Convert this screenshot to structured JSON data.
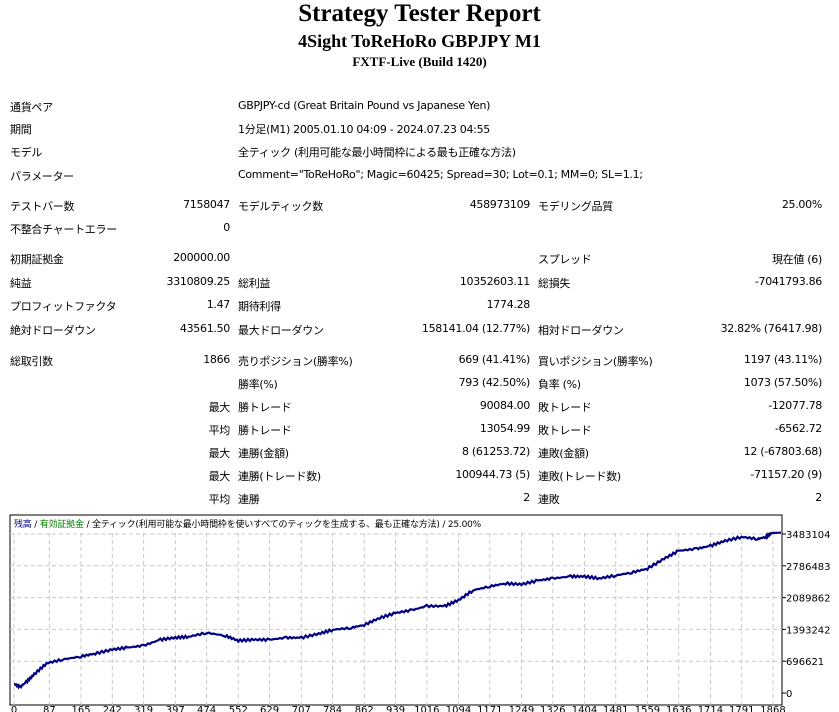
{
  "header": {
    "title": "Strategy Tester Report",
    "subtitle": "4Sight ToReHoRo GBPJPY M1",
    "build": "FXTF-Live (Build 1420)"
  },
  "info": [
    {
      "label": "通貨ペア",
      "value": "GBPJPY-cd (Great Britain Pound vs Japanese Yen)"
    },
    {
      "label": "期間",
      "value": "1分足(M1) 2005.01.10 04:09 - 2024.07.23 04:55"
    },
    {
      "label": "モデル",
      "value": "全ティック (利用可能な最小時間枠による最も正確な方法)"
    },
    {
      "label": "パラメーター",
      "value": "Comment=\"ToReHoRo\"; Magic=60425; Spread=30; Lot=0.1; MM=0; SL=1.1;"
    }
  ],
  "stats": [
    [
      "テストバー数",
      "7158047",
      "モデルティック数",
      "458973109",
      "モデリング品質",
      "25.00%"
    ],
    [
      "不整合チャートエラー",
      "0",
      "",
      "",
      "",
      ""
    ],
    [
      "初期証拠金",
      "200000.00",
      "",
      "",
      "スプレッド",
      "現在値 (6)"
    ],
    [
      "純益",
      "3310809.25",
      "総利益",
      "10352603.11",
      "総損失",
      "-7041793.86"
    ],
    [
      "プロフィットファクタ",
      "1.47",
      "期待利得",
      "1774.28",
      "",
      ""
    ],
    [
      "絶対ドローダウン",
      "43561.50",
      "最大ドローダウン",
      "158141.04 (12.77%)",
      "相対ドローダウン",
      "32.82% (76417.98)"
    ],
    [
      "総取引数",
      "1866",
      "売りポジション(勝率%)",
      "669 (41.41%)",
      "買いポジション(勝率%)",
      "1197 (43.11%)"
    ],
    [
      "",
      "",
      "勝率(%)",
      "793 (42.50%)",
      "負率 (%)",
      "1073 (57.50%)"
    ],
    [
      "",
      "最大",
      "勝トレード",
      "90084.00",
      "敗トレード",
      "-12077.78"
    ],
    [
      "",
      "平均",
      "勝トレード",
      "13054.99",
      "敗トレード",
      "-6562.72"
    ],
    [
      "",
      "最大",
      "連勝(金額)",
      "8 (61253.72)",
      "連敗(金額)",
      "12 (-67803.68)"
    ],
    [
      "",
      "最大",
      "連勝(トレード数)",
      "100944.73 (5)",
      "連敗(トレード数)",
      "-71157.20 (9)"
    ],
    [
      "",
      "平均",
      "連勝",
      "2",
      "連敗",
      "2"
    ]
  ],
  "legend": {
    "balance": "残高",
    "sep1": " / ",
    "equity": "有効証拠金",
    "sep2": " / ",
    "model": "全ティック(利用可能な最小時間枠を使いすべてのティックを生成する、最も正確な方法)",
    "sep3": " / ",
    "quality": "25.00%"
  },
  "colors": {
    "balance": "#000080",
    "equity": "#008000",
    "grid": "#c8c8c8"
  },
  "chart_data": {
    "type": "line",
    "xlabel": "",
    "ylabel": "",
    "x_ticks": [
      "0",
      "87",
      "165",
      "242",
      "319",
      "397",
      "474",
      "552",
      "629",
      "707",
      "784",
      "862",
      "939",
      "1016",
      "1094",
      "1171",
      "1249",
      "1326",
      "1404",
      "1481",
      "1559",
      "1636",
      "1714",
      "1791",
      "1868"
    ],
    "y_ticks": [
      "0",
      "696621",
      "1393242",
      "2089862",
      "2786483",
      "3483104"
    ],
    "xlim": [
      0,
      1868
    ],
    "ylim": [
      0,
      3483104
    ],
    "series": [
      {
        "name": "残高",
        "x": [
          0,
          15,
          30,
          50,
          80,
          120,
          165,
          200,
          242,
          280,
          319,
          360,
          397,
          430,
          474,
          520,
          552,
          590,
          629,
          670,
          707,
          750,
          785,
          830,
          862,
          900,
          939,
          980,
          1016,
          1060,
          1094,
          1130,
          1171,
          1210,
          1249,
          1290,
          1326,
          1370,
          1404,
          1440,
          1481,
          1520,
          1559,
          1600,
          1636,
          1680,
          1714,
          1750,
          1791,
          1830,
          1850,
          1866
        ],
        "y": [
          200000,
          130000,
          238000,
          411000,
          649000,
          736000,
          800000,
          865000,
          952000,
          995000,
          1038000,
          1168000,
          1211000,
          1233000,
          1320000,
          1255000,
          1147000,
          1168000,
          1168000,
          1211000,
          1211000,
          1298000,
          1385000,
          1428000,
          1493000,
          1644000,
          1752000,
          1817000,
          1904000,
          1904000,
          2034000,
          2250000,
          2336000,
          2401000,
          2380000,
          2466000,
          2510000,
          2553000,
          2553000,
          2510000,
          2574000,
          2639000,
          2726000,
          2942000,
          3115000,
          3159000,
          3223000,
          3332000,
          3418000,
          3375000,
          3418000,
          3510809
        ]
      }
    ]
  }
}
